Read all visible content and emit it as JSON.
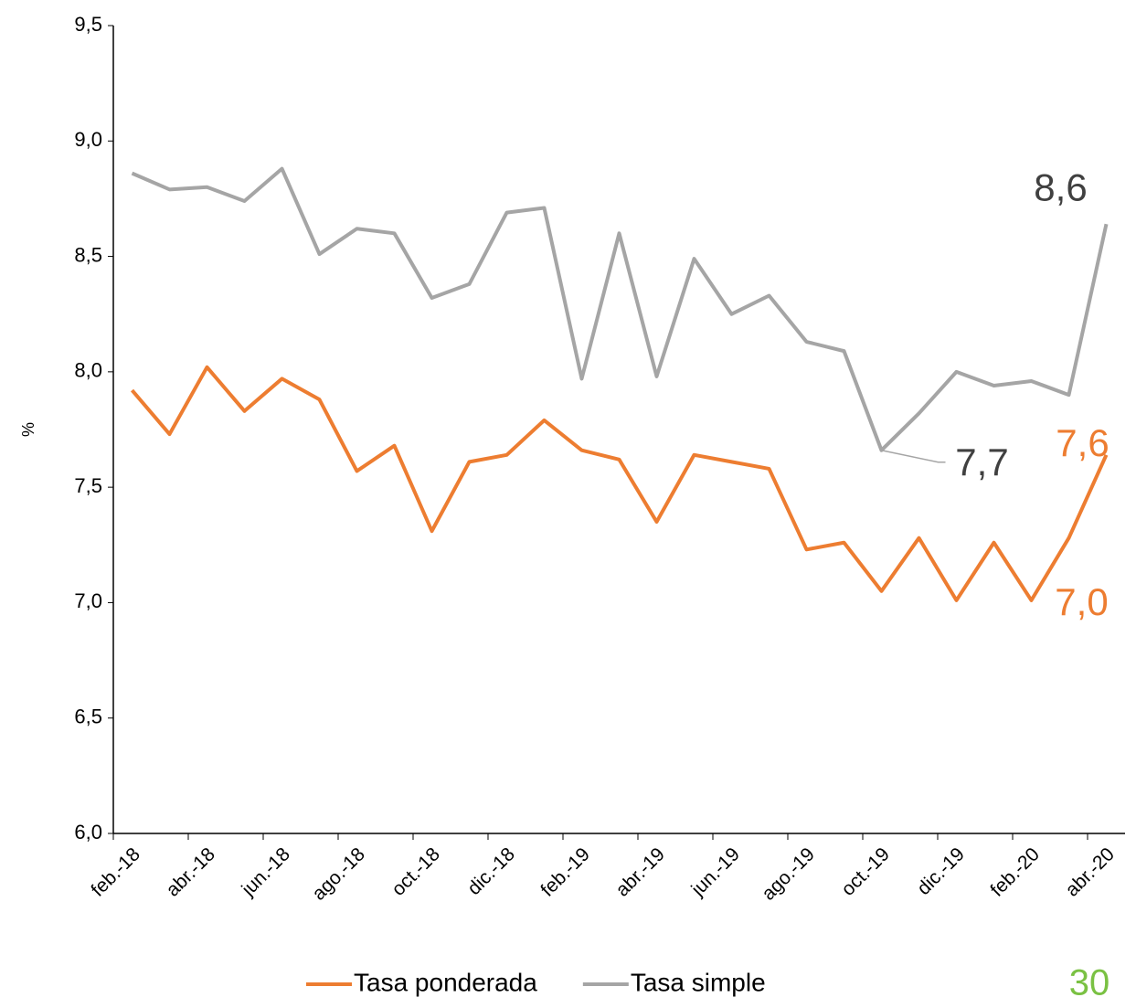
{
  "chart_data": {
    "type": "line",
    "y_label": "%",
    "categories": [
      "feb.-18",
      null,
      "abr.-18",
      null,
      "jun.-18",
      null,
      "ago.-18",
      null,
      "oct.-18",
      null,
      "dic.-18",
      null,
      "feb.-19",
      null,
      "abr.-19",
      null,
      "jun.-19",
      null,
      "ago.-19",
      null,
      "oct.-19",
      null,
      "dic.-19",
      null,
      "feb.-20",
      null,
      "abr.-20"
    ],
    "series": [
      {
        "name": "Tasa ponderada",
        "color": "#ed7d31",
        "values": [
          7.92,
          7.73,
          8.02,
          7.83,
          7.97,
          7.88,
          7.57,
          7.68,
          7.31,
          7.61,
          7.64,
          7.79,
          7.66,
          7.62,
          7.35,
          7.64,
          7.61,
          7.58,
          7.23,
          7.26,
          7.05,
          7.28,
          7.01,
          7.26,
          7.01,
          7.28,
          7.64
        ],
        "value_labels": [
          null,
          null,
          null,
          null,
          null,
          null,
          null,
          null,
          null,
          null,
          null,
          null,
          null,
          null,
          null,
          null,
          null,
          null,
          null,
          null,
          null,
          null,
          null,
          null,
          "7,0",
          null,
          "7,6"
        ]
      },
      {
        "name": "Tasa simple",
        "color": "#a5a5a5",
        "values": [
          8.86,
          8.79,
          8.8,
          8.74,
          8.88,
          8.51,
          8.62,
          8.6,
          8.32,
          8.38,
          8.69,
          8.71,
          7.97,
          8.6,
          7.98,
          8.49,
          8.25,
          8.33,
          8.13,
          8.09,
          7.66,
          7.82,
          8.0,
          7.94,
          7.96,
          7.9,
          8.64
        ],
        "value_labels": [
          null,
          null,
          null,
          null,
          null,
          null,
          null,
          null,
          null,
          null,
          null,
          null,
          null,
          null,
          null,
          null,
          null,
          null,
          null,
          null,
          "7,7",
          null,
          null,
          null,
          null,
          null,
          "8,6"
        ]
      }
    ],
    "ylim": [
      6,
      9.5
    ],
    "yticks": [
      {
        "value": 6,
        "label": "6,0"
      },
      {
        "value": 6.5,
        "label": "6,5"
      },
      {
        "value": 7,
        "label": "7,0"
      },
      {
        "value": 7.5,
        "label": "7,5"
      },
      {
        "value": 8,
        "label": "8,0"
      },
      {
        "value": 8.5,
        "label": "8,5"
      },
      {
        "value": 9,
        "label": "9,0"
      },
      {
        "value": 9.5,
        "label": "9,5"
      }
    ],
    "grid": false,
    "legend": "bottom"
  },
  "page_number": "30"
}
